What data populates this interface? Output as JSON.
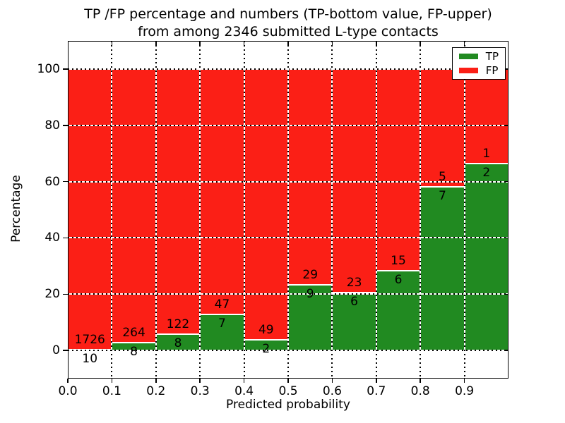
{
  "title": {
    "line1": "TP /FP percentage and numbers (TP-bottom value, FP-upper)",
    "line2": "from among 2346 submitted L-type contacts"
  },
  "axes": {
    "xlabel": "Predicted probability",
    "ylabel": "Percentage"
  },
  "legend": [
    {
      "label": "TP",
      "color": "#218a21"
    },
    {
      "label": "FP",
      "color": "#fb1f16"
    }
  ],
  "colors": {
    "tp_green": "#218a21",
    "fp_red": "#fb1f16",
    "background": "#ffffff",
    "axis": "#000000"
  },
  "chart_data": {
    "type": "bar",
    "stacked": true,
    "normalized_height": 100,
    "title": "TP /FP percentage and numbers (TP-bottom value, FP-upper) from among 2346 submitted L-type contacts",
    "xlabel": "Predicted probability",
    "ylabel": "Percentage",
    "xlim": [
      0.0,
      1.0
    ],
    "ylim": [
      -10,
      110
    ],
    "xticks": [
      0.0,
      0.1,
      0.2,
      0.3,
      0.4,
      0.5,
      0.6,
      0.7,
      0.8,
      0.9
    ],
    "yticks": [
      0,
      20,
      40,
      60,
      80,
      100
    ],
    "grid": true,
    "grid_style": "dotted",
    "legend_position": "upper right",
    "bins": [
      [
        0.0,
        0.1
      ],
      [
        0.1,
        0.2
      ],
      [
        0.2,
        0.3
      ],
      [
        0.3,
        0.4
      ],
      [
        0.4,
        0.5
      ],
      [
        0.5,
        0.6
      ],
      [
        0.6,
        0.7
      ],
      [
        0.7,
        0.8
      ],
      [
        0.8,
        0.9
      ],
      [
        0.9,
        1.0
      ]
    ],
    "series": [
      {
        "name": "TP",
        "color": "#218a21",
        "counts": [
          10,
          8,
          8,
          7,
          2,
          9,
          6,
          6,
          7,
          2
        ],
        "percent": [
          0.58,
          2.94,
          6.15,
          12.96,
          3.92,
          23.68,
          20.69,
          28.57,
          58.33,
          66.67
        ]
      },
      {
        "name": "FP",
        "color": "#fb1f16",
        "counts": [
          1726,
          264,
          122,
          47,
          49,
          29,
          23,
          15,
          5,
          1
        ],
        "percent": [
          99.42,
          97.06,
          93.85,
          87.04,
          96.08,
          76.32,
          79.31,
          71.43,
          41.67,
          33.33
        ]
      }
    ],
    "total_contacts": 2346
  }
}
